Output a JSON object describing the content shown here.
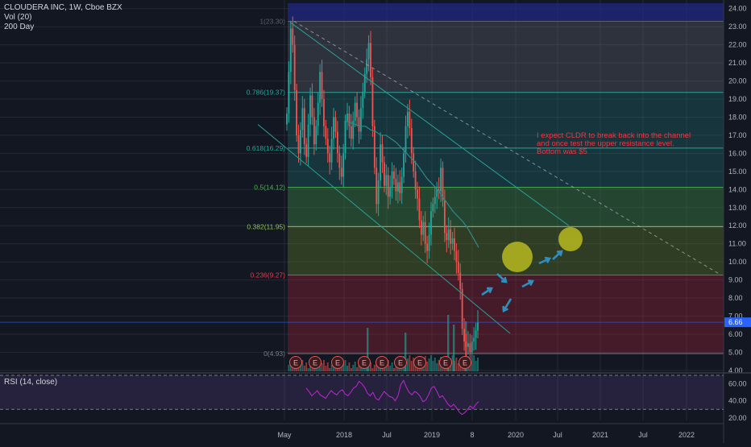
{
  "header": {
    "title_line": "CLOUDERA INC, 1W, Cboe BZX",
    "vol_label": "Vol (20)",
    "ma_label": "200 Day"
  },
  "rsi": {
    "label": "RSI (14, close)",
    "ticks": [
      "60.00",
      "40.00",
      "20.00"
    ]
  },
  "annotation": {
    "text": "I expect CLDR to break back into the channel and once test the upper resistance level. Bottom was $5"
  },
  "colors": {
    "up": "#26a69a",
    "down": "#ef5350",
    "background": "#131722",
    "grid": "#363a45",
    "text": "#b2b5be",
    "ma": "#2e8b8b",
    "channel": "#2aa198",
    "rsi_line": "#c026d3",
    "arrow": "#2f8fbf",
    "circle": "#b7b81e",
    "last_price": "#2962ff"
  },
  "chart_data": {
    "type": "candlestick",
    "title": "CLOUDERA INC, 1W, Cboe BZX",
    "x_ticks": [
      "May",
      "2018",
      "Jul",
      "2019",
      "8",
      "2020",
      "Jul",
      "2021",
      "Jul",
      "2022"
    ],
    "y_ticks": [
      "24.00",
      "23.00",
      "22.00",
      "21.00",
      "20.00",
      "19.00",
      "18.00",
      "17.00",
      "16.00",
      "15.00",
      "14.00",
      "13.00",
      "12.00",
      "11.00",
      "10.00",
      "9.00",
      "8.00",
      "7.00",
      "6.00",
      "5.00",
      "4.00"
    ],
    "ylim": [
      3.95,
      24.3
    ],
    "last_price": "6.66",
    "fib_levels": [
      {
        "label": "1(23.30)",
        "value": 23.3,
        "color": "#5d606b",
        "fill": "rgba(120,123,134,0.28)"
      },
      {
        "label": "0.786(19.37)",
        "value": 19.37,
        "color": "#26a69a",
        "fill": "rgba(38,166,154,0.22)"
      },
      {
        "label": "0.618(16.29)",
        "value": 16.29,
        "color": "#26a69a",
        "fill": "rgba(38,166,154,0.22)"
      },
      {
        "label": "0.5(14.12)",
        "value": 14.12,
        "color": "#4caf50",
        "fill": "rgba(76,175,80,0.30)"
      },
      {
        "label": "0.382(11.95)",
        "value": 11.95,
        "color": "#8bc34a",
        "fill": "rgba(110,150,40,0.30)"
      },
      {
        "label": "0.236(9.27)",
        "value": 9.27,
        "color": "#f23645",
        "fill": "rgba(200,40,60,0.28)"
      },
      {
        "label": "0(4.93)",
        "value": 4.93,
        "color": "#787b86",
        "fill": null
      }
    ],
    "top_band": {
      "from": 23.3,
      "to": 24.3,
      "fill": "rgba(33,40,130,0.75)"
    },
    "closes": [
      18.2,
      20.5,
      22.9,
      22.0,
      19.5,
      17.0,
      16.0,
      17.3,
      18.5,
      16.5,
      15.8,
      17.6,
      19.2,
      18.0,
      16.5,
      17.5,
      18.8,
      20.5,
      19.0,
      17.5,
      16.8,
      16.0,
      15.5,
      16.8,
      18.0,
      17.2,
      16.0,
      15.2,
      14.7,
      16.0,
      17.8,
      18.2,
      17.5,
      16.8,
      17.8,
      18.8,
      18.0,
      17.2,
      18.5,
      19.4,
      20.4,
      21.2,
      22.1,
      20.2,
      17.5,
      15.2,
      13.2,
      14.5,
      16.5,
      15.5,
      14.2,
      14.8,
      13.6,
      14.1,
      15.0,
      14.6,
      13.9,
      14.4,
      13.8,
      14.7,
      16.0,
      17.5,
      18.3,
      17.4,
      16.0,
      15.0,
      14.0,
      13.5,
      12.3,
      11.5,
      12.2,
      11.0,
      10.6,
      11.5,
      12.8,
      13.2,
      13.6,
      14.0,
      13.9,
      15.2,
      13.4,
      11.6,
      11.2,
      11.8,
      11.0,
      11.3,
      10.6,
      10.0,
      9.4,
      8.5,
      6.3,
      5.6,
      5.3,
      5.5,
      5.0,
      5.6,
      5.8,
      6.2,
      6.66
    ],
    "ma_200": [
      17.8,
      17.7,
      17.6,
      17.5,
      17.5,
      17.3,
      17.2,
      17.0,
      17.0,
      16.8,
      16.6,
      16.3,
      16.0,
      15.7,
      15.4,
      15.0,
      14.6,
      14.3,
      14.0,
      13.6,
      13.2,
      12.8,
      12.5,
      12.2,
      11.8,
      11.3,
      10.8
    ],
    "rsi_values": [
      55,
      51,
      46,
      49,
      52,
      47,
      45,
      43,
      48,
      52,
      49,
      47,
      51,
      53,
      48,
      46,
      50,
      55,
      57,
      63,
      60,
      56,
      49,
      46,
      50,
      43,
      41,
      46,
      51,
      48,
      45,
      44,
      40,
      46,
      59,
      64,
      56,
      50,
      47,
      51,
      49,
      45,
      39,
      41,
      47,
      55,
      57,
      51,
      44,
      46,
      41,
      36,
      33,
      36,
      32,
      27,
      24,
      26,
      30,
      34,
      31,
      36,
      39
    ]
  }
}
